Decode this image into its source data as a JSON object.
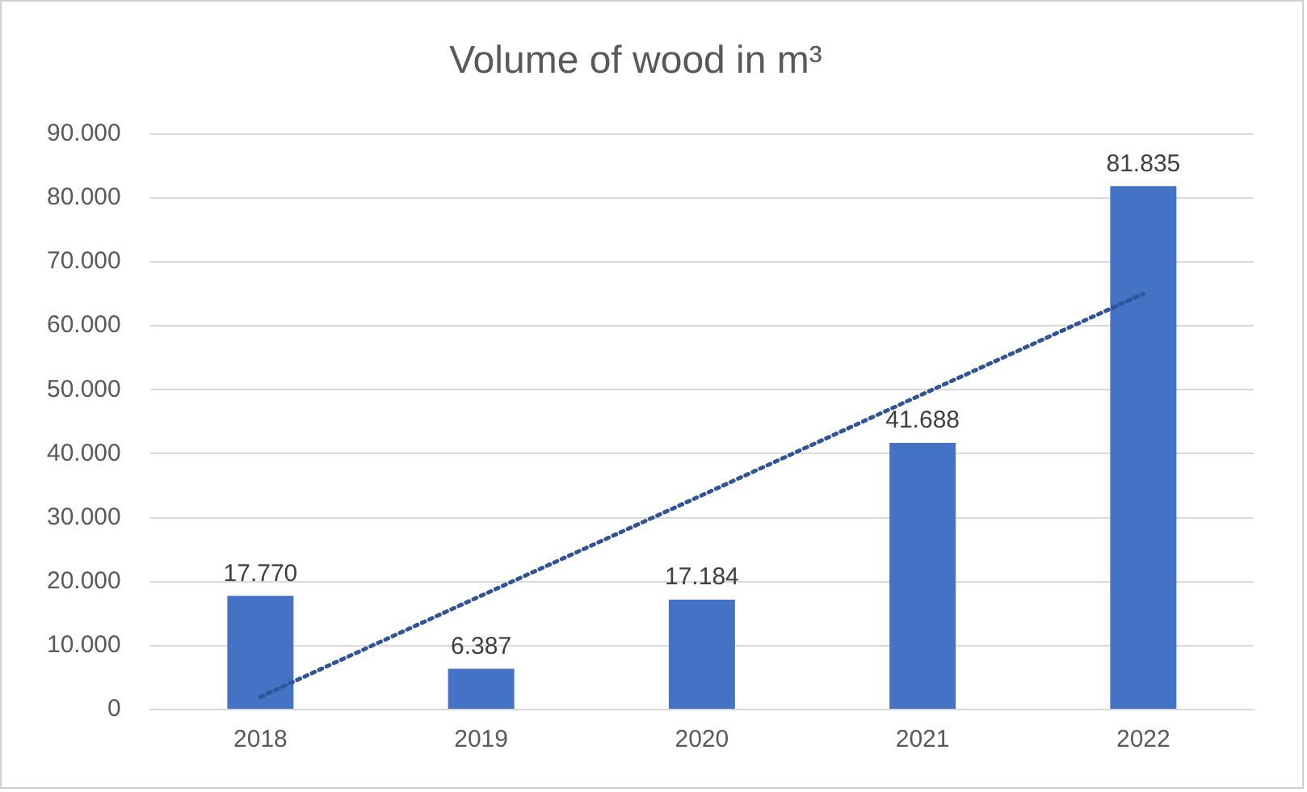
{
  "chart_data": {
    "type": "bar",
    "title": "Volume of wood in m³",
    "categories": [
      "2018",
      "2019",
      "2020",
      "2021",
      "2022"
    ],
    "series": [
      {
        "color": "#4472c4",
        "values": [
          17770,
          6387,
          17184,
          41688,
          81835
        ],
        "value_labels": [
          "17.770",
          "6.387",
          "17.184",
          "41.688",
          "81.835"
        ]
      },
      {
        "type": "line",
        "color": "#2f5597",
        "line_style": "dotted",
        "marker": "none",
        "values": [
          2000,
          17800,
          33500,
          49300,
          65000
        ]
      }
    ],
    "ylim": [
      0,
      90000
    ],
    "yticks": [
      {
        "value": 0,
        "label": "0"
      },
      {
        "value": 10000,
        "label": "10.000"
      },
      {
        "value": 20000,
        "label": "20.000"
      },
      {
        "value": 30000,
        "label": "30.000"
      },
      {
        "value": 40000,
        "label": "40.000"
      },
      {
        "value": 50000,
        "label": "50.000"
      },
      {
        "value": 60000,
        "label": "60.000"
      },
      {
        "value": 70000,
        "label": "70.000"
      },
      {
        "value": 80000,
        "label": "80.000"
      },
      {
        "value": 90000,
        "label": "90.000"
      }
    ],
    "grid": "y",
    "legend": false
  }
}
